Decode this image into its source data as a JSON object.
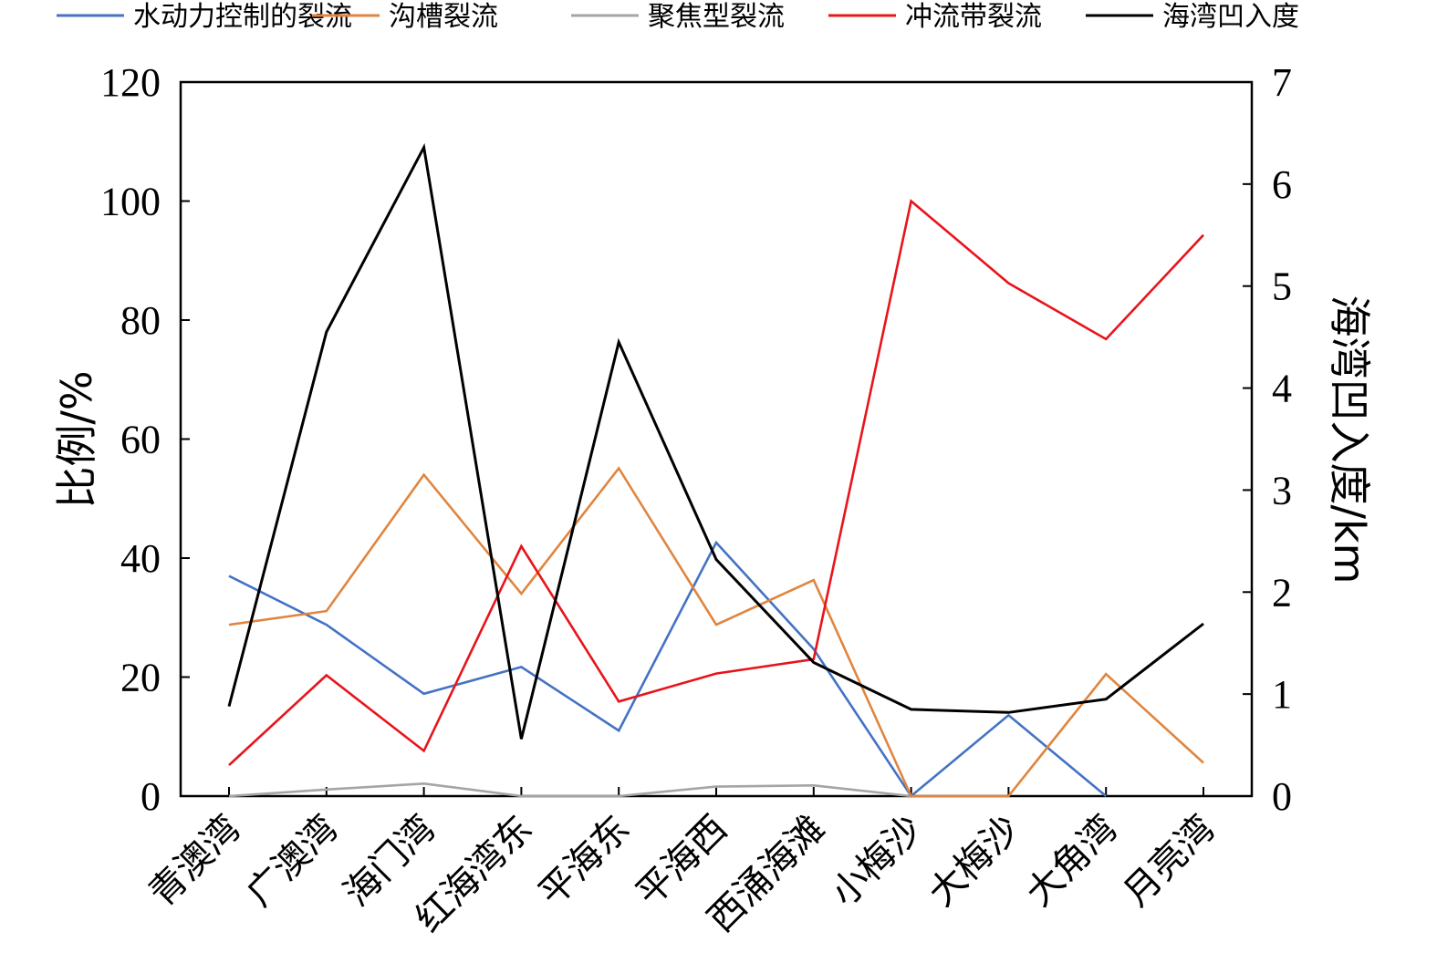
{
  "chart_data": {
    "type": "line",
    "categories": [
      "青澳湾",
      "广澳湾",
      "海门湾",
      "红海湾东",
      "平海东",
      "平海西",
      "西涌海滩",
      "小梅沙",
      "大梅沙",
      "大角湾",
      "月亮湾"
    ],
    "series": [
      {
        "name": "水动力控制的裂流",
        "color": "#4472C4",
        "axis": "left",
        "values": [
          37,
          28.8,
          17.2,
          21.7,
          11,
          42.6,
          24.7,
          0,
          13.6,
          0,
          null
        ]
      },
      {
        "name": "沟槽裂流",
        "color": "#E0853F",
        "axis": "left",
        "values": [
          28.8,
          31.1,
          54,
          34,
          55.1,
          28.8,
          36.3,
          0,
          0,
          20.5,
          5.6
        ]
      },
      {
        "name": "聚焦型裂流",
        "color": "#A5A5A5",
        "axis": "left",
        "values": [
          0,
          1.1,
          2.1,
          0,
          0,
          1.6,
          1.8,
          0,
          null,
          null,
          null
        ]
      },
      {
        "name": "冲流带裂流",
        "color": "#E8141B",
        "axis": "left",
        "values": [
          5.2,
          20.3,
          7.6,
          42,
          15.9,
          20.6,
          23,
          100,
          86.2,
          76.8,
          94.3
        ]
      },
      {
        "name": "海湾凹入度",
        "color": "#000000",
        "axis": "right",
        "values": [
          0.88,
          4.55,
          6.36,
          0.56,
          4.45,
          2.32,
          1.31,
          0.85,
          0.82,
          0.95,
          1.69
        ]
      }
    ],
    "left_axis": {
      "label": "比例/%",
      "range": [
        0,
        120
      ],
      "ticks": [
        "0",
        "20",
        "40",
        "60",
        "80",
        "100",
        "120"
      ]
    },
    "right_axis": {
      "label": "海湾凹入度/km",
      "range": [
        0,
        7
      ],
      "ticks": [
        "0",
        "1",
        "2",
        "3",
        "4",
        "5",
        "6",
        "7"
      ]
    },
    "grid": false,
    "legend_position": "top"
  }
}
